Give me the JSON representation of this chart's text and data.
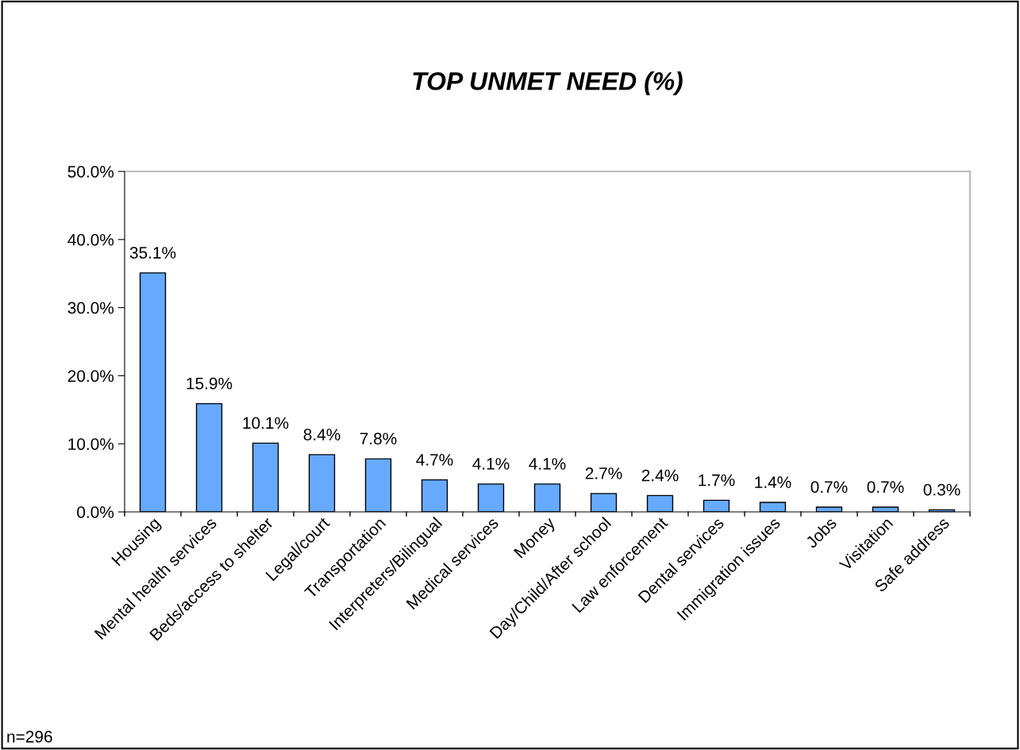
{
  "chart_data": {
    "type": "bar",
    "title": "TOP UNMET NEED (%)",
    "categories": [
      "Housing",
      "Mental health services",
      "Beds/access to shelter",
      "Legal/court",
      "Transportation",
      "Interpreters/Bilingual",
      "Medical services",
      "Money",
      "Day/Child/After school",
      "Law enforcement",
      "Dental services",
      "Immigration issues",
      "Jobs",
      "Visitation",
      "Safe address"
    ],
    "values": [
      35.1,
      15.9,
      10.1,
      8.4,
      7.8,
      4.7,
      4.1,
      4.1,
      2.7,
      2.4,
      1.7,
      1.4,
      0.7,
      0.7,
      0.3
    ],
    "value_labels": [
      "35.1%",
      "15.9%",
      "10.1%",
      "8.4%",
      "7.8%",
      "4.7%",
      "4.1%",
      "4.1%",
      "2.7%",
      "2.4%",
      "1.7%",
      "1.4%",
      "0.7%",
      "0.7%",
      "0.3%"
    ],
    "color": "#66aaff",
    "ylim": [
      0,
      50
    ],
    "yticks": [
      {
        "value": 0,
        "label": "0.0%"
      },
      {
        "value": 10,
        "label": "10.0%"
      },
      {
        "value": 20,
        "label": "20.0%"
      },
      {
        "value": 30,
        "label": "30.0%"
      },
      {
        "value": 40,
        "label": "40.0%"
      },
      {
        "value": 50,
        "label": "50.0%"
      }
    ],
    "grid": false,
    "legend": false,
    "annotations": [
      "n=296"
    ]
  }
}
